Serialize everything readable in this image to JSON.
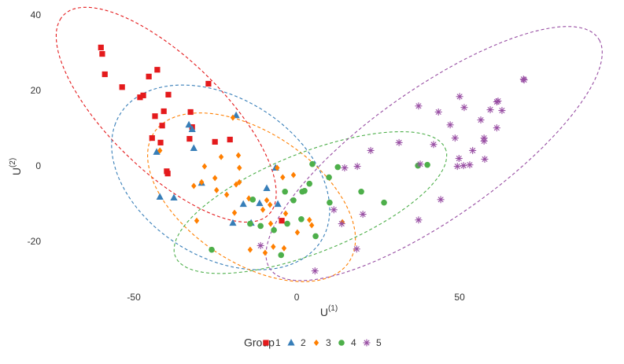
{
  "chart_data": {
    "type": "scatter",
    "x_label": {
      "text": "U",
      "superscript": "(1)"
    },
    "y_label": {
      "text": "U",
      "superscript": "(2)"
    },
    "legend_title": "Group",
    "legend_position": "bottom",
    "grid": false,
    "ellipses": true,
    "xlim": [
      -72,
      92
    ],
    "ylim": [
      -33,
      42
    ],
    "xticks": [
      -50,
      0,
      50
    ],
    "yticks": [
      -20,
      0,
      20,
      40
    ],
    "series": [
      {
        "name": "1",
        "color": "#e41a1c",
        "shape": "square",
        "x": [
          -60.1,
          -59.7,
          -58.9,
          -53.6,
          -48.1,
          -47.1,
          -45.4,
          -42.8,
          -39.4,
          -27.1,
          -40.8,
          -43.5,
          -41.3,
          -32.6,
          -32.1,
          -32.9,
          -44.4,
          -41.8,
          -39.9,
          -39.6,
          -25.1,
          -20.5,
          -4.6
        ],
        "y": [
          31.5,
          29.8,
          24.4,
          21.0,
          18.3,
          18.8,
          23.8,
          25.6,
          19.0,
          21.9,
          14.6,
          13.3,
          10.8,
          14.4,
          10.4,
          7.3,
          7.5,
          6.3,
          -1.3,
          -1.9,
          6.5,
          7.1,
          -14.4
        ]
      },
      {
        "name": "2",
        "color": "#377eb8",
        "shape": "triangle",
        "x": [
          -18.6,
          -33.1,
          -32.1,
          -31.6,
          -43.0,
          -42.0,
          -37.7,
          -29.2,
          -9.2,
          -16.4,
          -6.5,
          -5.8,
          -19.6,
          -14.0,
          -11.4
        ],
        "y": [
          13.5,
          11.0,
          9.8,
          4.8,
          3.8,
          -8.1,
          -8.3,
          -4.4,
          -5.8,
          -10.0,
          -0.4,
          -10.0,
          -15.0,
          -15.0,
          -9.8
        ]
      },
      {
        "name": "3",
        "color": "#ff7f00",
        "shape": "diamond",
        "x": [
          -19.6,
          -42.0,
          -23.2,
          -17.9,
          -17.6,
          -28.3,
          -31.6,
          -29.2,
          -25.1,
          -24.6,
          -18.6,
          -19.1,
          -21.5,
          -17.6,
          -30.7,
          -14.7,
          -10.4,
          -8.2,
          -9.2,
          -6.0,
          -4.3,
          -1.0,
          0.2,
          -3.4,
          4.6,
          -7.2,
          -9.7,
          -14.3,
          -8.0,
          14.0,
          -3.9,
          3.9
        ],
        "y": [
          12.9,
          4.2,
          2.5,
          2.9,
          -0.4,
          0.0,
          -5.2,
          -4.2,
          -3.1,
          -6.3,
          -4.8,
          -12.3,
          -7.5,
          -4.2,
          -14.4,
          -8.5,
          -11.5,
          -10.2,
          -9.0,
          -0.4,
          -2.9,
          -2.3,
          -17.5,
          -12.5,
          -15.6,
          -21.3,
          -22.9,
          -22.1,
          -15.2,
          -14.8,
          -21.7,
          -14.2
        ]
      },
      {
        "name": "4",
        "color": "#4daf4a",
        "shape": "circle",
        "x": [
          4.8,
          12.6,
          40.1,
          37.2,
          1.7,
          2.4,
          3.9,
          -3.6,
          -1.0,
          10.1,
          19.8,
          26.8,
          -13.5,
          -7.0,
          -11.1,
          -14.3,
          -2.9,
          1.4,
          5.8,
          -4.8,
          -26.1,
          9.9
        ],
        "y": [
          0.6,
          -0.2,
          0.4,
          0.2,
          -6.7,
          -6.5,
          -4.6,
          -6.7,
          -9.0,
          -9.6,
          -6.7,
          -9.6,
          -8.8,
          -16.9,
          -15.8,
          -15.2,
          -15.2,
          -14.0,
          -18.5,
          -23.5,
          -22.1,
          -2.9
        ]
      },
      {
        "name": "5",
        "color": "#984ea3",
        "shape": "star",
        "x": [
          37.4,
          43.5,
          50.0,
          51.4,
          47.1,
          48.6,
          56.5,
          57.5,
          57.5,
          59.4,
          61.4,
          61.8,
          63.0,
          69.8,
          69.6,
          61.4,
          42.0,
          31.4,
          22.7,
          37.9,
          49.8,
          51.2,
          49.3,
          53.1,
          57.7,
          54.0,
          14.7,
          18.6,
          44.2,
          20.3,
          11.4,
          13.8,
          37.4,
          18.4,
          5.6,
          -11.1
        ],
        "y": [
          16.0,
          14.4,
          18.5,
          15.6,
          11.0,
          7.5,
          12.3,
          7.5,
          6.7,
          15.0,
          17.1,
          17.3,
          14.8,
          22.9,
          23.1,
          10.2,
          5.8,
          6.3,
          4.2,
          0.6,
          2.1,
          0.2,
          0.0,
          0.4,
          1.9,
          4.2,
          -0.4,
          0.0,
          -8.8,
          -12.7,
          -11.5,
          -15.2,
          -14.2,
          -21.9,
          -27.7,
          -21.0
        ]
      }
    ]
  }
}
